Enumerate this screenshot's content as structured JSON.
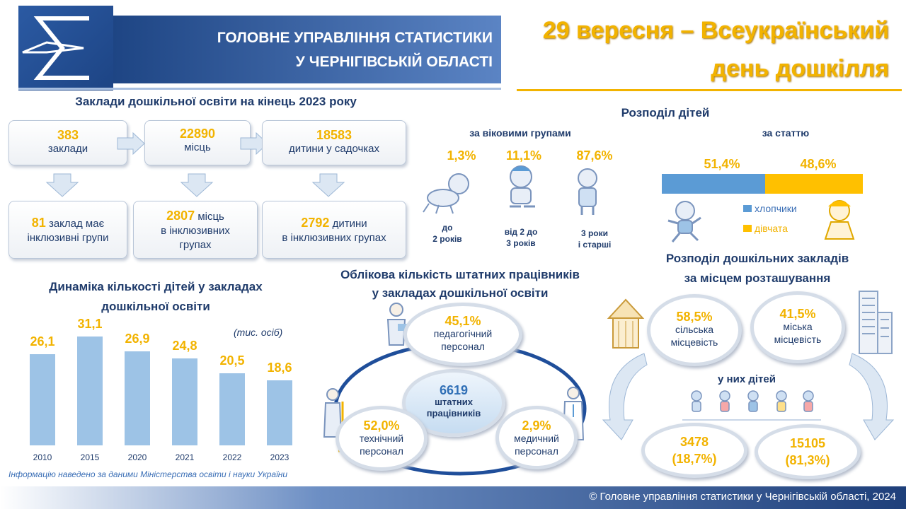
{
  "header": {
    "org_line1": "ГОЛОВНЕ УПРАВЛІННЯ СТАТИСТИКИ",
    "org_line2": "У ЧЕРНІГІВСЬКІЙ ОБЛАСТІ",
    "event_line1": "29 вересня – Всеукраїнський",
    "event_line2": "день дошкілля"
  },
  "institutions": {
    "title": "Заклади дошкільної освіти на кінець 2023 року",
    "top": [
      {
        "value": "383",
        "label": "заклади"
      },
      {
        "value": "22890",
        "label": "місць"
      },
      {
        "value": "18583",
        "label": "дитини  у садочках"
      }
    ],
    "bottom": [
      {
        "value": "81",
        "label_a": " заклад має",
        "label_b": "інклюзивні групи"
      },
      {
        "value": "2807",
        "label_a": " місць",
        "label_b": "в інклюзивних",
        "label_c": "групах"
      },
      {
        "value": "2792",
        "label_a": " дитини",
        "label_b": "в інклюзивних групах"
      }
    ]
  },
  "distribution": {
    "title": "Розподіл дітей",
    "age_title": "за віковими групами",
    "gender_title": "за статтю",
    "age": [
      {
        "value": "1,3%",
        "label_a": "до",
        "label_b": "2 років"
      },
      {
        "value": "11,1%",
        "label_a": "від 2 до",
        "label_b": "3 років"
      },
      {
        "value": "87,6%",
        "label_a": "3 роки",
        "label_b": "і старші"
      }
    ],
    "gender": {
      "boys_value": "51,4%",
      "girls_value": "48,6%",
      "boys_label": "хлопчики",
      "girls_label": "дівчата",
      "boys_color": "#5b9bd5",
      "girls_color": "#ffc000"
    }
  },
  "chart_data": {
    "type": "bar",
    "title": "Динаміка кількості дітей у закладах дошкільної освіти",
    "unit": "(тис. осіб)",
    "categories": [
      "2010",
      "2015",
      "2020",
      "2021",
      "2022",
      "2023"
    ],
    "values": [
      26.1,
      31.1,
      26.9,
      24.8,
      20.5,
      18.6
    ],
    "value_labels": [
      "26,1",
      "31,1",
      "26,9",
      "24,8",
      "20,5",
      "18,6"
    ],
    "ylim": [
      0,
      31.1
    ],
    "grid": false,
    "bar_color": "#9dc3e6"
  },
  "staff": {
    "title_a": "Облікова кількість штатних працівників",
    "title_b": "у закладах дошкільної освіти",
    "total_value": "6619",
    "total_label_a": "штатних",
    "total_label_b": "працівників",
    "pedagogical": {
      "value": "45,1%",
      "label_a": "педагогічний",
      "label_b": "персонал"
    },
    "technical": {
      "value": "52,0%",
      "label_a": "технічний",
      "label_b": "персонал"
    },
    "medical": {
      "value": "2,9%",
      "label_a": "медичний",
      "label_b": "персонал"
    }
  },
  "location": {
    "title_a": "Розподіл дошкільних закладів",
    "title_b": "за місцем розташування",
    "rural": {
      "value": "58,5%",
      "label_a": "сільська",
      "label_b": "місцевість"
    },
    "urban": {
      "value": "41,5%",
      "label_a": "міська",
      "label_b": "місцевість"
    },
    "children_title": "у них дітей",
    "rural_children": {
      "value": "3478",
      "share": "(18,7%)"
    },
    "urban_children": {
      "value": "15105",
      "share": "(81,3%)"
    }
  },
  "source_note": "Інформацію наведено за даними Міністерства освіти і науки України",
  "footer": "© Головне управління статистики у Чернігівській області, 2024"
}
